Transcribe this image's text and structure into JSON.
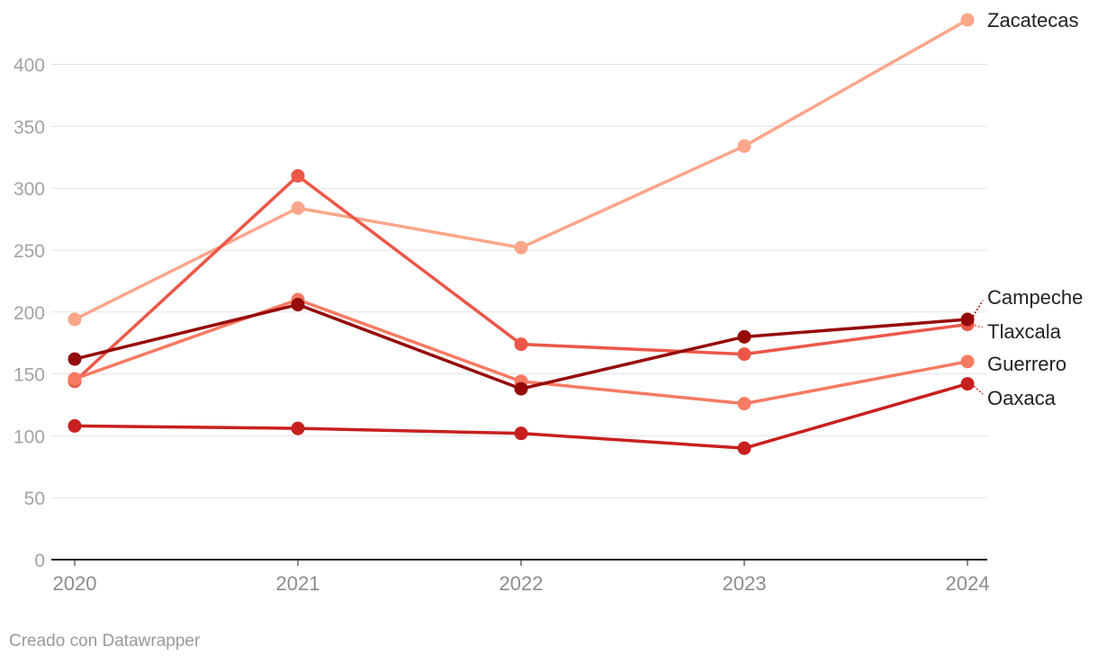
{
  "footer": {
    "credit": "Creado con Datawrapper"
  },
  "chart_data": {
    "type": "line",
    "title": "",
    "xlabel": "",
    "ylabel": "",
    "x": [
      "2020",
      "2021",
      "2022",
      "2023",
      "2024"
    ],
    "ylim": [
      0,
      450
    ],
    "yticks": [
      0,
      50,
      100,
      150,
      200,
      250,
      300,
      350,
      400
    ],
    "grid": true,
    "legend": "direct labels at line ends",
    "series": [
      {
        "name": "Zacatecas",
        "color": "#fca68a",
        "values": [
          194,
          284,
          252,
          334,
          436
        ]
      },
      {
        "name": "Tlaxcala",
        "color": "#ec5748",
        "values": [
          144,
          310,
          174,
          166,
          190
        ]
      },
      {
        "name": "Guerrero",
        "color": "#f77a62",
        "values": [
          146,
          210,
          144,
          126,
          160
        ]
      },
      {
        "name": "Campeche",
        "color": "#960a0a",
        "values": [
          162,
          206,
          138,
          180,
          194
        ]
      },
      {
        "name": "Oaxaca",
        "color": "#c8201f",
        "values": [
          108,
          106,
          102,
          90,
          142
        ]
      }
    ]
  }
}
